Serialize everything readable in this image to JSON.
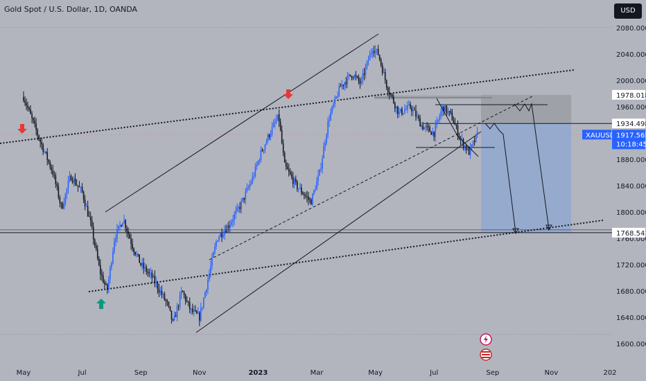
{
  "title": "Gold Spot / U.S. Dollar, 1D, OANDA",
  "currency_button": "USD",
  "colors": {
    "background": "#b2b5be",
    "up": "#2962ff",
    "down": "#131722",
    "marker_down": "#e53935",
    "marker_up": "#089981",
    "short_zone": "#90a8d0"
  },
  "chart_data": {
    "type": "candlestick",
    "title": "Gold Spot / U.S. Dollar, 1D, OANDA",
    "ylim": [
      1600,
      2090
    ],
    "y_ticks": [
      {
        "value": 1600,
        "label": "1600.000"
      },
      {
        "value": 1640,
        "label": "1640.000"
      },
      {
        "value": 1680,
        "label": "1680.000"
      },
      {
        "value": 1720,
        "label": "1720.000"
      },
      {
        "value": 1800,
        "label": "1800.000"
      },
      {
        "value": 1840,
        "label": "1840.000"
      },
      {
        "value": 1880,
        "label": "1880.000"
      },
      {
        "value": 1960,
        "label": "1960.000"
      },
      {
        "value": 2000,
        "label": "2000.000"
      },
      {
        "value": 2040,
        "label": "2040.000"
      },
      {
        "value": 2080,
        "label": "2080.000"
      }
    ],
    "x_ticks": [
      "May",
      "Jul",
      "Sep",
      "Nov",
      "2023",
      "Mar",
      "May",
      "Jul",
      "Sep",
      "Nov",
      "202"
    ],
    "x_tick_months": [
      0,
      2,
      4,
      6,
      8,
      10,
      12,
      14,
      16,
      18,
      20
    ],
    "price_path": [
      [
        0,
        1975
      ],
      [
        0.5,
        1915
      ],
      [
        1.0,
        1860
      ],
      [
        1.3,
        1805
      ],
      [
        1.6,
        1855
      ],
      [
        2.0,
        1830
      ],
      [
        2.3,
        1780
      ],
      [
        2.6,
        1710
      ],
      [
        2.85,
        1680
      ],
      [
        3.1,
        1760
      ],
      [
        3.4,
        1790
      ],
      [
        3.7,
        1750
      ],
      [
        4.0,
        1720
      ],
      [
        4.4,
        1700
      ],
      [
        4.9,
        1660
      ],
      [
        5.1,
        1630
      ],
      [
        5.4,
        1680
      ],
      [
        5.7,
        1650
      ],
      [
        6.0,
        1640
      ],
      [
        6.3,
        1700
      ],
      [
        6.6,
        1760
      ],
      [
        7.0,
        1780
      ],
      [
        7.4,
        1810
      ],
      [
        7.8,
        1850
      ],
      [
        8.1,
        1890
      ],
      [
        8.4,
        1920
      ],
      [
        8.7,
        1945
      ],
      [
        8.9,
        1870
      ],
      [
        9.3,
        1840
      ],
      [
        9.8,
        1815
      ],
      [
        10.1,
        1860
      ],
      [
        10.4,
        1940
      ],
      [
        10.8,
        1990
      ],
      [
        11.2,
        2010
      ],
      [
        11.5,
        1995
      ],
      [
        11.9,
        2050
      ],
      [
        12.1,
        2040
      ],
      [
        12.4,
        1990
      ],
      [
        12.8,
        1950
      ],
      [
        13.2,
        1960
      ],
      [
        13.6,
        1930
      ],
      [
        14.0,
        1920
      ],
      [
        14.3,
        1960
      ],
      [
        14.6,
        1945
      ],
      [
        14.9,
        1910
      ],
      [
        15.2,
        1890
      ],
      [
        15.5,
        1920
      ]
    ],
    "annotations": {
      "price_labels": [
        {
          "value": 1978.018,
          "label": "1978.018"
        },
        {
          "value": 1934.498,
          "label": "1934.498"
        },
        {
          "value": 1768.541,
          "label": "1768.541"
        }
      ],
      "current": {
        "symbol": "XAUUSD",
        "price": "1917.565",
        "timer": "10:18:45",
        "value": 1917.565
      },
      "hidden_tick": "1760.000",
      "short_zone": {
        "entry": 1934.498,
        "stop": 1978.018,
        "target": 1768.541
      }
    }
  }
}
